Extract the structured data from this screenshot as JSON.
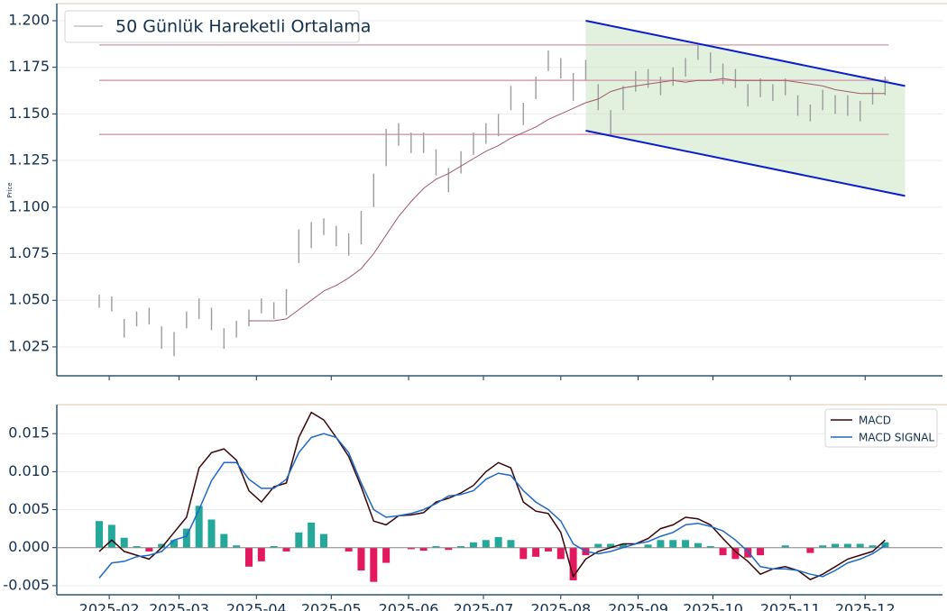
{
  "chart_data": [
    {
      "type": "ohlc",
      "y_label": "Price",
      "x": [
        27,
        32,
        37,
        42,
        47,
        52,
        57,
        62,
        67,
        72,
        77,
        82,
        87,
        92,
        97,
        102,
        107,
        112,
        117,
        122,
        127,
        132,
        137,
        142,
        147,
        152,
        157,
        162,
        167,
        172,
        177,
        182,
        187,
        192,
        197,
        202,
        207,
        212,
        217,
        222,
        227,
        232,
        237,
        242,
        247,
        252,
        257,
        262,
        267,
        272,
        277,
        282,
        287,
        292,
        297,
        302,
        307,
        312,
        317,
        322,
        327,
        332,
        337,
        342
      ],
      "high": [
        1.053,
        1.052,
        1.04,
        1.044,
        1.046,
        1.036,
        1.033,
        1.044,
        1.051,
        1.046,
        1.035,
        1.039,
        1.045,
        1.051,
        1.049,
        1.056,
        1.088,
        1.092,
        1.094,
        1.09,
        1.086,
        1.098,
        1.118,
        1.142,
        1.145,
        1.14,
        1.14,
        1.131,
        1.121,
        1.13,
        1.14,
        1.145,
        1.15,
        1.165,
        1.156,
        1.17,
        1.184,
        1.18,
        1.172,
        1.179,
        1.166,
        1.152,
        1.165,
        1.173,
        1.174,
        1.17,
        1.175,
        1.18,
        1.187,
        1.183,
        1.177,
        1.174,
        1.166,
        1.169,
        1.166,
        1.169,
        1.16,
        1.155,
        1.163,
        1.16,
        1.16,
        1.157,
        1.164,
        1.17
      ],
      "low": [
        1.046,
        1.044,
        1.03,
        1.036,
        1.037,
        1.024,
        1.02,
        1.035,
        1.04,
        1.034,
        1.024,
        1.03,
        1.036,
        1.043,
        1.04,
        1.042,
        1.07,
        1.078,
        1.085,
        1.079,
        1.074,
        1.08,
        1.1,
        1.122,
        1.133,
        1.129,
        1.129,
        1.117,
        1.108,
        1.118,
        1.128,
        1.134,
        1.138,
        1.152,
        1.144,
        1.158,
        1.173,
        1.169,
        1.157,
        1.168,
        1.152,
        1.138,
        1.152,
        1.162,
        1.164,
        1.16,
        1.165,
        1.17,
        1.179,
        1.172,
        1.166,
        1.164,
        1.154,
        1.159,
        1.157,
        1.16,
        1.149,
        1.146,
        1.152,
        1.15,
        1.149,
        1.146,
        1.155,
        1.16
      ],
      "bar_color": "#9c9c9c",
      "series": [
        {
          "name": "50 Günlük Hareketli Ortalama",
          "color": "#a2596b",
          "values": [
            null,
            null,
            null,
            null,
            null,
            null,
            null,
            null,
            null,
            null,
            null,
            null,
            1.039,
            1.039,
            1.039,
            1.04,
            1.045,
            1.05,
            1.055,
            1.058,
            1.062,
            1.067,
            1.075,
            1.085,
            1.095,
            1.103,
            1.11,
            1.115,
            1.118,
            1.122,
            1.126,
            1.13,
            1.133,
            1.137,
            1.14,
            1.143,
            1.147,
            1.15,
            1.153,
            1.156,
            1.158,
            1.162,
            1.164,
            1.165,
            1.166,
            1.167,
            1.168,
            1.167,
            1.168,
            1.168,
            1.169,
            1.168,
            1.168,
            1.168,
            1.168,
            1.168,
            1.167,
            1.166,
            1.165,
            1.163,
            1.162,
            1.161,
            1.161,
            1.161
          ]
        }
      ],
      "legend_line_color": "#b5b5b5",
      "legend": "upper left",
      "hlines": {
        "values": [
          1.187,
          1.168,
          1.139
        ],
        "color": "#d6a8b4"
      },
      "channel": {
        "x": [
          222,
          350
        ],
        "upper": [
          1.2,
          1.165
        ],
        "lower": [
          1.141,
          1.106
        ],
        "line_color": "#0a1ecc",
        "fill_color": "#cde8c6"
      },
      "xlim": [
        10,
        365
      ],
      "xticks": [
        31,
        59,
        90,
        120,
        151,
        181,
        212,
        243,
        273,
        304,
        334
      ],
      "ylim": [
        1.0095,
        1.2087
      ],
      "yticks": [
        1.025,
        {
          "value": 1.05,
          "label": "1.050"
        },
        1.075,
        {
          "value": 1.1,
          "label": "1.100"
        },
        1.125,
        {
          "value": 1.15,
          "label": "1.150"
        },
        1.175,
        {
          "value": 1.2,
          "label": "1.200"
        }
      ],
      "grid": true
    },
    {
      "type": "macd",
      "x": [
        27,
        32,
        37,
        42,
        47,
        52,
        57,
        62,
        67,
        72,
        77,
        82,
        87,
        92,
        97,
        102,
        107,
        112,
        117,
        122,
        127,
        132,
        137,
        142,
        147,
        152,
        157,
        162,
        167,
        172,
        177,
        182,
        187,
        192,
        197,
        202,
        207,
        212,
        217,
        222,
        227,
        232,
        237,
        242,
        247,
        252,
        257,
        262,
        267,
        272,
        277,
        282,
        287,
        292,
        297,
        302,
        307,
        312,
        317,
        322,
        327,
        332,
        337,
        342
      ],
      "series": [
        {
          "name": "MACD",
          "color": "#3a0508",
          "values": [
            -0.0005,
            0.001,
            -0.0005,
            -0.001,
            -0.0015,
            0.0,
            0.002,
            0.004,
            0.0105,
            0.0125,
            0.013,
            0.0115,
            0.0075,
            0.006,
            0.008,
            0.0085,
            0.0145,
            0.0178,
            0.0168,
            0.0145,
            0.012,
            0.008,
            0.0035,
            0.003,
            0.0042,
            0.0043,
            0.0046,
            0.006,
            0.0065,
            0.0072,
            0.0082,
            0.01,
            0.0112,
            0.0105,
            0.006,
            0.0048,
            0.0045,
            0.002,
            -0.0038,
            -0.0015,
            -0.0005,
            0.0,
            0.0005,
            0.0005,
            0.0012,
            0.0025,
            0.003,
            0.004,
            0.0038,
            0.003,
            0.0012,
            -0.0005,
            -0.0018,
            -0.0035,
            -0.0028,
            -0.0025,
            -0.003,
            -0.0042,
            -0.0035,
            -0.0025,
            -0.0015,
            -0.001,
            -0.0005,
            0.001
          ]
        },
        {
          "name": "MACD SIGNAL",
          "color": "#1f68c8",
          "values": [
            -0.004,
            -0.002,
            -0.0018,
            -0.0012,
            -0.001,
            -0.0005,
            0.001,
            0.0015,
            0.005,
            0.0088,
            0.0112,
            0.0112,
            0.009,
            0.0078,
            0.0078,
            0.009,
            0.0125,
            0.0145,
            0.015,
            0.0145,
            0.0125,
            0.0085,
            0.005,
            0.004,
            0.0042,
            0.0045,
            0.005,
            0.0058,
            0.0068,
            0.007,
            0.0075,
            0.009,
            0.0098,
            0.0095,
            0.0075,
            0.006,
            0.005,
            0.0035,
            0.0005,
            -0.0005,
            -0.0008,
            -0.0005,
            0.0,
            0.0005,
            0.0008,
            0.0015,
            0.002,
            0.003,
            0.0032,
            0.0028,
            0.0022,
            0.001,
            -0.0005,
            -0.0025,
            -0.0028,
            -0.0028,
            -0.003,
            -0.0035,
            -0.0038,
            -0.003,
            -0.002,
            -0.0015,
            -0.0008,
            0.0003
          ]
        }
      ],
      "histogram": [
        0.0035,
        0.003,
        0.0013,
        0.0002,
        -0.0005,
        0.0005,
        0.001,
        0.0025,
        0.0055,
        0.0037,
        0.0018,
        0.0003,
        -0.0025,
        -0.0018,
        0.0002,
        -0.0005,
        0.002,
        0.0033,
        0.0018,
        0.0,
        -0.0005,
        -0.003,
        -0.0045,
        -0.002,
        0.0,
        -0.0002,
        -0.0004,
        0.0002,
        -0.0003,
        0.0002,
        0.0007,
        0.001,
        0.0014,
        0.001,
        -0.0015,
        -0.0012,
        -0.0005,
        -0.0015,
        -0.0043,
        -0.001,
        0.0005,
        0.0005,
        0.0005,
        0.0,
        0.0004,
        0.001,
        0.001,
        0.001,
        0.0006,
        0.0002,
        -0.001,
        -0.0015,
        -0.0013,
        -0.001,
        0.0,
        0.0003,
        0.0,
        -0.0007,
        0.0003,
        0.0005,
        0.0005,
        0.0005,
        0.0003,
        0.0007
      ],
      "positive_color": "#23a89a",
      "negative_color": "#e3195f",
      "legend": "upper right",
      "xlim": [
        10,
        365
      ],
      "xticks": [
        {
          "value": 31,
          "label": "2025-02"
        },
        {
          "value": 59,
          "label": "2025-03"
        },
        {
          "value": 90,
          "label": "2025-04"
        },
        {
          "value": 120,
          "label": "2025-05"
        },
        {
          "value": 151,
          "label": "2025-06"
        },
        {
          "value": 181,
          "label": "2025-07"
        },
        {
          "value": 212,
          "label": "2025-08"
        },
        {
          "value": 243,
          "label": "2025-09"
        },
        {
          "value": 273,
          "label": "2025-10"
        },
        {
          "value": 304,
          "label": "2025-11"
        },
        {
          "value": 334,
          "label": "2025-12"
        }
      ],
      "ylim": [
        -0.0062,
        0.0187
      ],
      "yticks": [
        -0.005,
        {
          "value": 0,
          "label": "0.000"
        },
        0.005,
        {
          "value": 0.01,
          "label": "0.010"
        },
        0.015
      ],
      "grid": true
    }
  ]
}
